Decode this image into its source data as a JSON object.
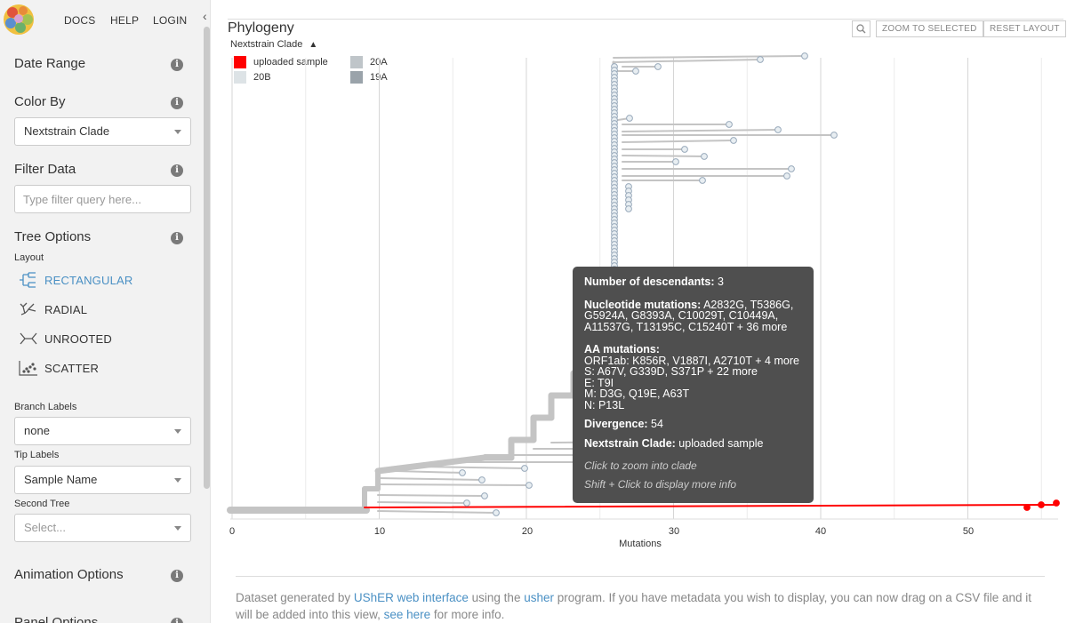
{
  "nav": {
    "docs": "DOCS",
    "help": "HELP",
    "login": "LOGIN"
  },
  "sidebar": {
    "date_range": "Date Range",
    "color_by": {
      "title": "Color By",
      "value": "Nextstrain Clade"
    },
    "filter": {
      "title": "Filter Data",
      "placeholder": "Type filter query here..."
    },
    "tree_options": {
      "title": "Tree Options",
      "layout_label": "Layout",
      "layouts": [
        "RECTANGULAR",
        "RADIAL",
        "UNROOTED",
        "SCATTER"
      ],
      "branch_labels": {
        "label": "Branch Labels",
        "value": "none"
      },
      "tip_labels": {
        "label": "Tip Labels",
        "value": "Sample Name"
      },
      "second_tree": {
        "label": "Second Tree",
        "value": "Select..."
      }
    },
    "animation_options": "Animation Options",
    "panel_options": "Panel Options",
    "info_glyph": "i"
  },
  "panel": {
    "title": "Phylogeny",
    "zoom_to_selected": "ZOOM TO SELECTED",
    "reset_layout": "RESET LAYOUT",
    "legend_title": "Nextstrain Clade",
    "legend": [
      {
        "label": "uploaded sample",
        "color": "#ff0000"
      },
      {
        "label": "20B",
        "color": "#dde3e6"
      },
      {
        "label": "20A",
        "color": "#bfc5c9"
      },
      {
        "label": "19A",
        "color": "#9aa3aa"
      }
    ],
    "x_axis": {
      "label": "Mutations",
      "ticks": [
        "0",
        "10",
        "20",
        "30",
        "40",
        "50"
      ]
    }
  },
  "tooltip": {
    "descendants_label": "Number of descendants:",
    "descendants_value": "3",
    "nuc_label": "Nucleotide mutations:",
    "nuc_value": "A2832G, T5386G, G5924A, G8393A, C10029T, C10449A, A11537G, T13195C, C15240T + 36 more",
    "aa_label": "AA mutations:",
    "aa_lines": [
      "ORF1ab:  K856R, V1887I, A2710T + 4 more",
      "S:  A67V, G339D, S371P + 22 more",
      "E:  T9I",
      "M:  D3G, Q19E, A63T",
      "N:  P13L"
    ],
    "divergence_label": "Divergence:",
    "divergence_value": "54",
    "clade_label": "Nextstrain Clade:",
    "clade_value": "uploaded sample",
    "hint_zoom": "Click to zoom into clade",
    "hint_shift": "Shift + Click to display more info"
  },
  "footer": {
    "t1": "Dataset generated by ",
    "link1": "UShER web interface",
    "t2": " using the ",
    "link2": "usher",
    "t3": " program. If you have metadata you wish to display, you can now drag on a CSV file and it will be added into this view, ",
    "link3": "see here",
    "t4": " for more info."
  },
  "colors": {
    "accent": "#4a90c4",
    "branch": "#c4c4c4",
    "highlight": "#ff0000"
  }
}
